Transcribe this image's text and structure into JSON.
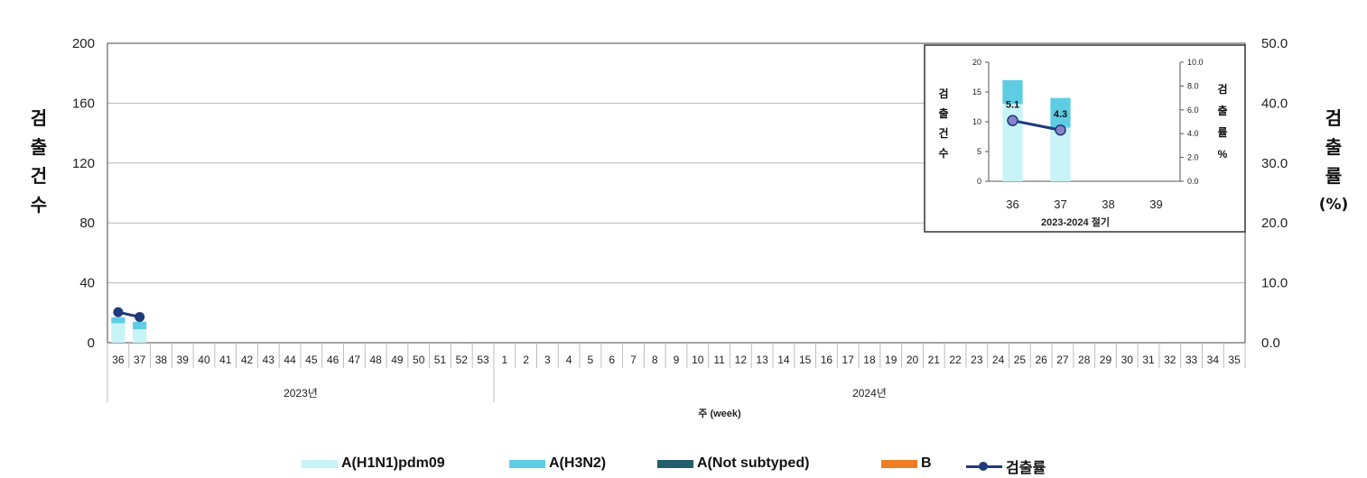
{
  "chart_data": {
    "main": {
      "type": "bar",
      "left_axis_label": [
        "검",
        "출",
        "건",
        "수"
      ],
      "right_axis_label": [
        "검",
        "출",
        "률",
        "(%)"
      ],
      "x_axis_label": "주 (week)",
      "year_groups": [
        {
          "label": "2023년",
          "from": 0,
          "to": 17
        },
        {
          "label": "2024년",
          "from": 18,
          "to": 52
        }
      ],
      "categories": [
        "36",
        "37",
        "38",
        "39",
        "40",
        "41",
        "42",
        "43",
        "44",
        "45",
        "46",
        "47",
        "48",
        "49",
        "50",
        "51",
        "52",
        "53",
        "1",
        "2",
        "3",
        "4",
        "5",
        "6",
        "7",
        "8",
        "9",
        "10",
        "11",
        "12",
        "13",
        "14",
        "15",
        "16",
        "17",
        "18",
        "19",
        "20",
        "21",
        "22",
        "23",
        "24",
        "25",
        "26",
        "27",
        "28",
        "29",
        "30",
        "31",
        "32",
        "33",
        "34",
        "35"
      ],
      "y_left": {
        "min": 0,
        "max": 200,
        "ticks": [
          "0",
          "40",
          "80",
          "120",
          "160",
          "200"
        ]
      },
      "y_right": {
        "min": 0,
        "max": 50,
        "ticks": [
          "0.0",
          "10.0",
          "20.0",
          "30.0",
          "40.0",
          "50.0"
        ]
      },
      "series": [
        {
          "name": "A(H1N1)pdm09",
          "type": "bar",
          "color": "#c8f3f7",
          "values": [
            13,
            9
          ]
        },
        {
          "name": "A(H3N2)",
          "type": "bar",
          "color": "#5ecde4",
          "values": [
            4,
            5
          ]
        },
        {
          "name": "A(Not subtyped)",
          "type": "bar",
          "color": "#245e6e",
          "values": [
            0,
            0
          ]
        },
        {
          "name": "B",
          "type": "bar",
          "color": "#ef7d22",
          "values": [
            0,
            0
          ]
        },
        {
          "name": "검출률",
          "type": "line",
          "color": "#1f3a7a",
          "values": [
            5.1,
            4.3
          ]
        }
      ],
      "grid": true
    },
    "inset": {
      "type": "bar",
      "title": "2023-2024 절기",
      "left_axis_label": [
        "검",
        "출",
        "건",
        "수"
      ],
      "right_axis_label": [
        "검",
        "출",
        "률",
        "%"
      ],
      "categories": [
        "36",
        "37",
        "38",
        "39"
      ],
      "y_left": {
        "min": 0,
        "max": 20,
        "ticks": [
          "0",
          "5",
          "10",
          "15",
          "20"
        ]
      },
      "y_right": {
        "min": 0,
        "max": 10,
        "ticks": [
          "0.0",
          "2.0",
          "4.0",
          "6.0",
          "8.0",
          "10.0"
        ]
      },
      "bars_h1n1": [
        13,
        9
      ],
      "bars_h3n2": [
        4,
        5
      ],
      "rate": [
        5.1,
        4.3
      ],
      "rate_labels": [
        "5.1",
        "4.3"
      ]
    }
  },
  "legend": [
    {
      "label": "A(H1N1)pdm09",
      "color": "#c8f3f7",
      "kind": "bar"
    },
    {
      "label": "A(H3N2)",
      "color": "#5ecde4",
      "kind": "bar"
    },
    {
      "label": "A(Not subtyped)",
      "color": "#245e6e",
      "kind": "bar"
    },
    {
      "label": "B",
      "color": "#ef7d22",
      "kind": "bar"
    },
    {
      "label": "검출률",
      "color": "#1f3a7a",
      "kind": "line"
    }
  ]
}
